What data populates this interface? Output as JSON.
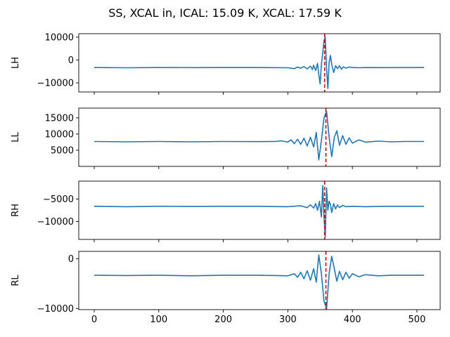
{
  "chart_data": {
    "type": "line",
    "title": "SS, XCAL in, ICAL: 15.09 K, XCAL: 17.59 K",
    "xlabel": "",
    "xlim": [
      -24,
      536
    ],
    "xticks": [
      0,
      100,
      200,
      300,
      400,
      500
    ],
    "line_color": "#1f77b4",
    "marker_color": "#cc0000",
    "panels": [
      {
        "ylabel": "LH",
        "ylim": [
          -14000,
          11500
        ],
        "yticks": [
          10000,
          0,
          -10000
        ],
        "baseline": -3300,
        "marker_x": 357,
        "series": {
          "x": [
            0,
            50,
            100,
            150,
            200,
            250,
            300,
            310,
            315,
            320,
            325,
            330,
            335,
            338,
            340,
            343,
            346,
            348,
            350,
            352,
            354,
            356,
            358,
            360,
            362,
            364,
            366,
            368,
            371,
            374,
            377,
            380,
            383,
            386,
            390,
            395,
            400,
            410,
            420,
            450,
            511
          ],
          "y": [
            -3300,
            -3400,
            -3300,
            -3350,
            -3300,
            -3300,
            -3400,
            -3800,
            -3100,
            -3600,
            -2900,
            -3900,
            -2700,
            -4200,
            -2300,
            -4600,
            -1500,
            -6500,
            -10500,
            -2000,
            3000,
            8500,
            10000,
            -4000,
            -12500,
            -1000,
            2000,
            -2000,
            -5500,
            -2500,
            -3800,
            -2500,
            -4000,
            -3000,
            -3600,
            -3100,
            -3300,
            -3400,
            -3300,
            -3350,
            -3300
          ]
        }
      },
      {
        "ylabel": "LL",
        "ylim": [
          0,
          18000
        ],
        "yticks": [
          15000,
          10000,
          5000
        ],
        "baseline": 7700,
        "marker_x": 359,
        "series": {
          "x": [
            0,
            50,
            100,
            150,
            200,
            250,
            280,
            290,
            300,
            305,
            310,
            315,
            320,
            325,
            330,
            335,
            340,
            344,
            348,
            352,
            356,
            360,
            364,
            368,
            372,
            376,
            380,
            385,
            390,
            395,
            400,
            410,
            420,
            440,
            460,
            480,
            511
          ],
          "y": [
            7700,
            7600,
            7700,
            7600,
            7700,
            7650,
            7700,
            7900,
            7500,
            8200,
            7000,
            8400,
            6800,
            8700,
            6300,
            9000,
            6000,
            10500,
            2000,
            8000,
            15000,
            17000,
            9000,
            3000,
            9000,
            11000,
            6500,
            9500,
            6800,
            8800,
            7200,
            8200,
            7500,
            7800,
            7600,
            7700,
            7700
          ]
        }
      },
      {
        "ylabel": "RH",
        "ylim": [
          -14000,
          -1000
        ],
        "yticks": [
          -5000,
          -10000
        ],
        "baseline": -6600,
        "marker_x": 357,
        "series": {
          "x": [
            0,
            50,
            100,
            150,
            200,
            250,
            300,
            320,
            330,
            335,
            340,
            343,
            346,
            349,
            352,
            354,
            356,
            358,
            360,
            362,
            364,
            366,
            368,
            371,
            374,
            377,
            380,
            385,
            390,
            400,
            420,
            450,
            511
          ],
          "y": [
            -6600,
            -6700,
            -6600,
            -6650,
            -6600,
            -6600,
            -6700,
            -6500,
            -6900,
            -6300,
            -7000,
            -6000,
            -7500,
            -5500,
            -9000,
            -2000,
            -9000,
            -13500,
            -2500,
            -7500,
            -5500,
            -6200,
            -8000,
            -6000,
            -7200,
            -6300,
            -6900,
            -6400,
            -6700,
            -6600,
            -6700,
            -6600,
            -6600
          ]
        }
      },
      {
        "ylabel": "RL",
        "ylim": [
          -10200,
          1500
        ],
        "yticks": [
          0,
          -10000
        ],
        "baseline": -3300,
        "marker_x": 359,
        "series": {
          "x": [
            0,
            50,
            100,
            150,
            200,
            250,
            280,
            300,
            310,
            315,
            320,
            325,
            330,
            335,
            340,
            344,
            348,
            352,
            356,
            360,
            364,
            368,
            372,
            376,
            380,
            385,
            390,
            395,
            400,
            410,
            420,
            440,
            460,
            480,
            511
          ],
          "y": [
            -3300,
            -3350,
            -3300,
            -3400,
            -3300,
            -3300,
            -3350,
            -3400,
            -3000,
            -3700,
            -2700,
            -4000,
            -2400,
            -4300,
            -2000,
            -4700,
            800,
            -3000,
            -8500,
            -10000,
            -3000,
            500,
            -2000,
            -4500,
            -2500,
            -4200,
            -2700,
            -3900,
            -3000,
            -3600,
            -3200,
            -3400,
            -3300,
            -3300,
            -3300
          ]
        }
      }
    ]
  }
}
